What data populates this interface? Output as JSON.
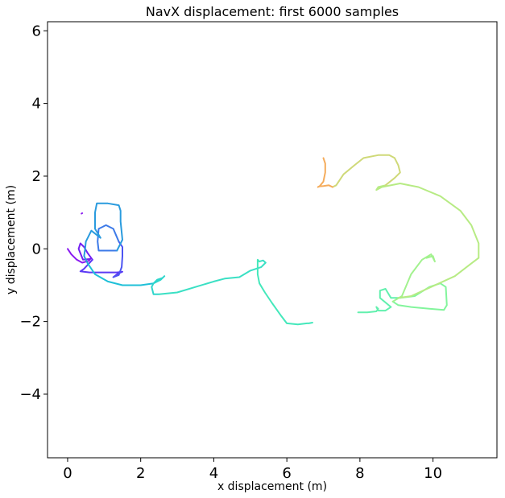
{
  "chart_data": {
    "type": "line",
    "title": "NavX displacement: first 6000 samples",
    "xlabel": "x displacement (m)",
    "ylabel": "y displacement (m)",
    "xlim": [
      -0.55,
      11.75
    ],
    "ylim": [
      -5.75,
      6.25
    ],
    "x_ticks": [
      0,
      2,
      4,
      6,
      8,
      10
    ],
    "y_ticks": [
      -4,
      -2,
      0,
      2,
      4,
      6
    ],
    "x_tick_labels": [
      "0",
      "2",
      "4",
      "6",
      "8",
      "10"
    ],
    "y_tick_labels": [
      "−4",
      "−2",
      "0",
      "2",
      "4",
      "6"
    ],
    "grid": false,
    "legend": "none",
    "colormap": "rainbow (color varies with sample index)",
    "series": [
      {
        "color": "#8b1cf0",
        "points": [
          [
            0.38,
            0.97
          ],
          [
            0.4,
            0.98
          ]
        ]
      },
      {
        "color": "#8a1af0",
        "points": [
          [
            0.0,
            0.0
          ],
          [
            0.1,
            -0.15
          ],
          [
            0.25,
            -0.3
          ],
          [
            0.4,
            -0.38
          ],
          [
            0.58,
            -0.33
          ],
          [
            0.62,
            -0.28
          ]
        ]
      },
      {
        "color": "#7420f2",
        "points": [
          [
            0.62,
            -0.28
          ],
          [
            0.42,
            -0.3
          ],
          [
            0.3,
            0.0
          ],
          [
            0.35,
            0.15
          ],
          [
            0.45,
            0.05
          ],
          [
            0.55,
            -0.12
          ],
          [
            0.68,
            -0.3
          ]
        ]
      },
      {
        "color": "#5c3af4",
        "points": [
          [
            0.68,
            -0.3
          ],
          [
            0.45,
            -0.55
          ],
          [
            0.35,
            -0.62
          ],
          [
            0.6,
            -0.65
          ],
          [
            1.0,
            -0.65
          ],
          [
            1.35,
            -0.65
          ],
          [
            1.5,
            -0.63
          ],
          [
            1.35,
            -0.7
          ],
          [
            1.25,
            -0.78
          ]
        ]
      },
      {
        "color": "#4c54f2",
        "points": [
          [
            1.25,
            -0.78
          ],
          [
            1.4,
            -0.72
          ],
          [
            1.48,
            -0.5
          ],
          [
            1.5,
            -0.2
          ],
          [
            1.5,
            0.05
          ],
          [
            1.4,
            0.2
          ]
        ]
      },
      {
        "color": "#3d7ae8",
        "points": [
          [
            1.4,
            0.2
          ],
          [
            1.25,
            0.55
          ],
          [
            1.05,
            0.65
          ],
          [
            0.85,
            0.55
          ],
          [
            0.82,
            0.2
          ],
          [
            0.85,
            -0.05
          ],
          [
            1.1,
            -0.05
          ],
          [
            1.35,
            -0.05
          ]
        ]
      },
      {
        "color": "#2a9bde",
        "points": [
          [
            1.35,
            -0.05
          ],
          [
            1.5,
            0.25
          ],
          [
            1.45,
            0.75
          ],
          [
            1.45,
            1.05
          ],
          [
            1.4,
            1.2
          ],
          [
            1.1,
            1.25
          ],
          [
            0.8,
            1.25
          ],
          [
            0.75,
            1.0
          ],
          [
            0.75,
            0.55
          ],
          [
            0.9,
            0.3
          ],
          [
            0.65,
            0.5
          ],
          [
            0.5,
            0.2
          ],
          [
            0.48,
            0.0
          ],
          [
            0.45,
            -0.2
          ],
          [
            0.55,
            -0.4
          ]
        ]
      },
      {
        "color": "#1fc0d8",
        "points": [
          [
            0.55,
            -0.4
          ],
          [
            0.75,
            -0.7
          ],
          [
            1.1,
            -0.9
          ],
          [
            1.5,
            -1.0
          ],
          [
            2.0,
            -1.0
          ],
          [
            2.35,
            -0.95
          ]
        ]
      },
      {
        "color": "#2fd6cc",
        "points": [
          [
            2.35,
            -0.95
          ],
          [
            2.45,
            -0.85
          ],
          [
            2.6,
            -0.8
          ],
          [
            2.65,
            -0.75
          ],
          [
            2.55,
            -0.85
          ],
          [
            2.35,
            -0.95
          ],
          [
            2.3,
            -1.05
          ],
          [
            2.35,
            -1.25
          ],
          [
            2.5,
            -1.25
          ]
        ]
      },
      {
        "color": "#3ae0c4",
        "points": [
          [
            2.5,
            -1.25
          ],
          [
            3.0,
            -1.2
          ],
          [
            3.5,
            -1.05
          ],
          [
            4.0,
            -0.9
          ],
          [
            4.3,
            -0.82
          ],
          [
            4.7,
            -0.78
          ],
          [
            5.0,
            -0.6
          ],
          [
            5.3,
            -0.5
          ],
          [
            5.42,
            -0.38
          ],
          [
            5.35,
            -0.32
          ],
          [
            5.25,
            -0.35
          ]
        ]
      },
      {
        "color": "#44e8bb",
        "points": [
          [
            5.25,
            -0.35
          ],
          [
            5.2,
            -0.3
          ],
          [
            5.2,
            -0.7
          ],
          [
            5.25,
            -0.95
          ],
          [
            5.4,
            -1.2
          ],
          [
            5.6,
            -1.5
          ],
          [
            5.85,
            -1.85
          ],
          [
            6.0,
            -2.05
          ],
          [
            6.3,
            -2.08
          ],
          [
            6.55,
            -2.05
          ],
          [
            6.6,
            -2.05
          ],
          [
            6.7,
            -2.03
          ]
        ]
      },
      {
        "color": "#62f0ae",
        "points": [
          [
            7.95,
            -1.75
          ],
          [
            8.2,
            -1.75
          ],
          [
            8.45,
            -1.72
          ],
          [
            8.5,
            -1.65
          ],
          [
            8.45,
            -1.6
          ],
          [
            8.5,
            -1.7
          ],
          [
            8.7,
            -1.7
          ],
          [
            8.85,
            -1.6
          ],
          [
            8.55,
            -1.35
          ],
          [
            8.55,
            -1.15
          ],
          [
            8.7,
            -1.1
          ],
          [
            8.85,
            -1.35
          ],
          [
            9.1,
            -1.35
          ]
        ]
      },
      {
        "color": "#82f59c",
        "points": [
          [
            9.1,
            -1.35
          ],
          [
            9.5,
            -1.3
          ],
          [
            9.9,
            -1.05
          ],
          [
            10.2,
            -0.95
          ],
          [
            10.35,
            -1.05
          ],
          [
            10.38,
            -1.55
          ],
          [
            10.3,
            -1.68
          ],
          [
            9.9,
            -1.65
          ],
          [
            9.4,
            -1.6
          ],
          [
            9.05,
            -1.55
          ],
          [
            8.9,
            -1.45
          ]
        ]
      },
      {
        "color": "#a2f28e",
        "points": [
          [
            8.9,
            -1.45
          ],
          [
            9.15,
            -1.3
          ],
          [
            9.4,
            -0.7
          ],
          [
            9.7,
            -0.3
          ],
          [
            9.95,
            -0.15
          ],
          [
            10.05,
            -0.35
          ],
          [
            10.0,
            -0.2
          ],
          [
            9.82,
            -0.25
          ]
        ]
      },
      {
        "color": "#b7eb84",
        "points": [
          [
            9.05,
            -1.35
          ],
          [
            9.4,
            -1.3
          ],
          [
            9.95,
            -1.05
          ],
          [
            10.6,
            -0.75
          ],
          [
            11.05,
            -0.4
          ],
          [
            11.25,
            -0.25
          ],
          [
            11.25,
            0.15
          ],
          [
            11.05,
            0.65
          ],
          [
            10.75,
            1.05
          ],
          [
            10.2,
            1.45
          ],
          [
            9.6,
            1.7
          ],
          [
            9.1,
            1.8
          ],
          [
            8.6,
            1.7
          ],
          [
            8.45,
            1.62
          ],
          [
            8.5,
            1.7
          ],
          [
            8.7,
            1.75
          ]
        ]
      },
      {
        "color": "#cfd978",
        "points": [
          [
            8.7,
            1.75
          ],
          [
            8.95,
            1.95
          ],
          [
            9.1,
            2.1
          ],
          [
            9.05,
            2.3
          ],
          [
            8.95,
            2.5
          ],
          [
            8.8,
            2.58
          ],
          [
            8.5,
            2.58
          ],
          [
            8.1,
            2.5
          ],
          [
            7.85,
            2.3
          ],
          [
            7.55,
            2.05
          ],
          [
            7.35,
            1.75
          ],
          [
            7.25,
            1.7
          ]
        ]
      },
      {
        "color": "#f5ac5c",
        "points": [
          [
            7.25,
            1.7
          ],
          [
            7.15,
            1.75
          ],
          [
            7.0,
            1.73
          ],
          [
            6.9,
            1.72
          ],
          [
            6.85,
            1.7
          ],
          [
            6.9,
            1.73
          ],
          [
            7.0,
            1.85
          ],
          [
            7.05,
            2.1
          ],
          [
            7.05,
            2.35
          ],
          [
            7.0,
            2.5
          ]
        ]
      }
    ]
  }
}
